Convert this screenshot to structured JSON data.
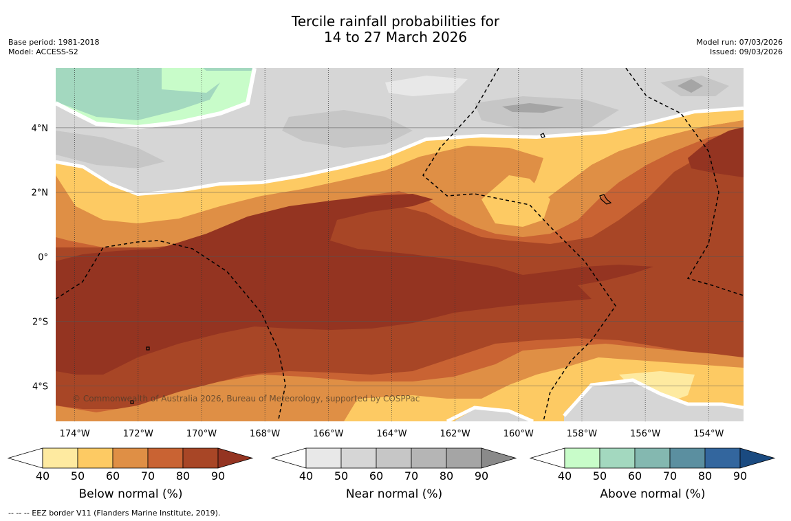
{
  "title": {
    "line1": "Tercile rainfall probabilities for",
    "line2": "14 to 27 March 2026"
  },
  "meta_left": {
    "base_period": "Base period: 1981-2018",
    "model": "Model: ACCESS-S2"
  },
  "meta_right": {
    "model_run": "Model run: 07/03/2026",
    "issued": "Issued: 09/03/2026"
  },
  "map": {
    "lon_range": [
      -174.6,
      -152.9
    ],
    "lat_range": [
      -5.1,
      5.85
    ],
    "lat_ticks": [
      {
        "value": 4,
        "label": "4°N"
      },
      {
        "value": 2,
        "label": "2°N"
      },
      {
        "value": 0,
        "label": "0°"
      },
      {
        "value": -2,
        "label": "2°S"
      },
      {
        "value": -4,
        "label": "4°S"
      }
    ],
    "lon_ticks": [
      {
        "value": -174,
        "label": "174°W"
      },
      {
        "value": -172,
        "label": "172°W"
      },
      {
        "value": -170,
        "label": "170°W"
      },
      {
        "value": -168,
        "label": "168°W"
      },
      {
        "value": -166,
        "label": "166°W"
      },
      {
        "value": -164,
        "label": "164°W"
      },
      {
        "value": -162,
        "label": "162°W"
      },
      {
        "value": -160,
        "label": "160°W"
      },
      {
        "value": -158,
        "label": "158°W"
      },
      {
        "value": -156,
        "label": "156°W"
      },
      {
        "value": -154,
        "label": "154°W"
      }
    ],
    "copyright": "© Commonwealth of Australia 2026, Bureau of Meteorology, supported by COSPPac"
  },
  "colorbars": [
    {
      "name": "below-normal",
      "label": "Below normal (%)",
      "ticks": [
        "40",
        "50",
        "60",
        "70",
        "80",
        "90"
      ],
      "colors": [
        "#ffffff",
        "#feeaa0",
        "#fdca63",
        "#df8f45",
        "#c96333",
        "#a84626",
        "#943421"
      ]
    },
    {
      "name": "near-normal",
      "label": "Near normal (%)",
      "ticks": [
        "40",
        "50",
        "60",
        "70",
        "80",
        "90"
      ],
      "colors": [
        "#ffffff",
        "#e8e8e8",
        "#d6d6d6",
        "#c6c6c6",
        "#b5b5b5",
        "#a5a5a5",
        "#8a8a8a"
      ]
    },
    {
      "name": "above-normal",
      "label": "Above normal (%)",
      "ticks": [
        "40",
        "50",
        "60",
        "70",
        "80",
        "90"
      ],
      "colors": [
        "#ffffff",
        "#c8fcc9",
        "#a3d8bf",
        "#84b8b0",
        "#5b8fa0",
        "#33669e",
        "#1a4a80"
      ]
    }
  ],
  "footnote": "--  --  -- EEZ border V11 (Flanders Marine Institute, 2019)."
}
